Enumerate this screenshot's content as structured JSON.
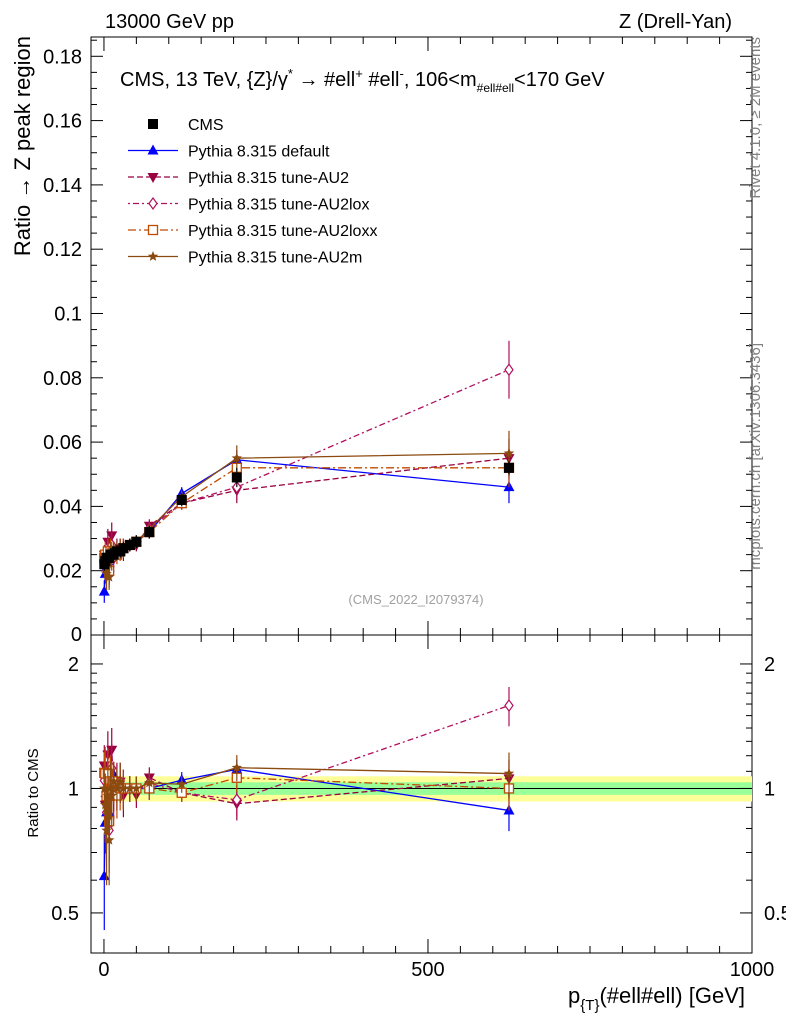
{
  "header": {
    "left": "13000 GeV pp",
    "right": "Z (Drell-Yan)"
  },
  "side_labels": {
    "rivet": "Rivet 4.1.0, ≥ 2M events",
    "mcplots": "mcplots.cern.ch [arXiv:1306.3436]"
  },
  "colors": {
    "cms": "#000000",
    "default": "#0000ff",
    "au2": "#990040",
    "au2lox": "#b01060",
    "au2loxx": "#c04a00",
    "au2m": "#8b4a10",
    "band_inner": "#99ff99",
    "band_outer": "#ffff99"
  },
  "chart_data": {
    "type": "scatter",
    "title": "CMS, 13 TeV, {Z}/γ* → #ell⁺ #ell⁻, 106<m_{#ell#ell}<170 GeV",
    "watermark": "(CMS_2022_I2079374)",
    "xlabel": "p_{T}(#ell#ell) [GeV]",
    "ylabel": "Ratio → Z peak region",
    "ratio_ylabel": "Ratio to CMS",
    "xlim": [
      -20,
      1000
    ],
    "ylim": [
      0,
      0.186
    ],
    "ratio_ylim": [
      0.4,
      2.35
    ],
    "xticks": [
      0,
      500,
      1000
    ],
    "xtick_labels": [
      "0",
      "500",
      "1000"
    ],
    "yticks": [
      0.02,
      0.04,
      0.06,
      0.08,
      0.1,
      0.12,
      0.14,
      0.16,
      0.18
    ],
    "ytick_labels": [
      "0.02",
      "0.04",
      "0.06",
      "0.08",
      "0.1",
      "0.12",
      "0.14",
      "0.16",
      "0.18"
    ],
    "ytick_zero_label": "0",
    "ratio_yticks": [
      0.5,
      1,
      2
    ],
    "ratio_ytick_labels": [
      "0.5",
      "1",
      "2"
    ],
    "x": [
      0.5,
      2,
      4,
      6,
      8,
      10,
      12,
      15,
      20,
      25,
      30,
      40,
      50,
      70,
      120,
      205,
      625
    ],
    "series": [
      {
        "name": "CMS",
        "key": "cms",
        "marker": "square",
        "dash": "",
        "values": [
          0.022,
          0.023,
          0.024,
          0.024,
          0.024,
          0.025,
          0.025,
          0.025,
          0.026,
          0.026,
          0.027,
          0.028,
          0.029,
          0.032,
          0.042,
          0.049,
          0.052
        ],
        "err": [
          0.002,
          0.002,
          0.002,
          0.002,
          0.002,
          0.002,
          0.002,
          0.002,
          0.002,
          0.002,
          0.002,
          0.002,
          0.002,
          0.002,
          0.002,
          0.003,
          0.002
        ]
      },
      {
        "name": "Pythia 8.315 default",
        "key": "default",
        "marker": "triangle-up",
        "dash": "",
        "values": [
          0.0135,
          0.019,
          0.021,
          0.023,
          0.021,
          0.025,
          0.026,
          0.027,
          0.026,
          0.026,
          0.027,
          0.028,
          0.029,
          0.032,
          0.044,
          0.0545,
          0.046
        ],
        "err": [
          0.0035,
          0.003,
          0.003,
          0.003,
          0.003,
          0.003,
          0.003,
          0.002,
          0.002,
          0.002,
          0.002,
          0.002,
          0.002,
          0.002,
          0.002,
          0.003,
          0.005
        ]
      },
      {
        "name": "Pythia 8.315 tune-AU2",
        "key": "au2",
        "marker": "triangle-down",
        "dash": "6,3",
        "values": [
          0.025,
          0.021,
          0.022,
          0.029,
          0.02,
          0.026,
          0.031,
          0.025,
          0.027,
          0.027,
          0.026,
          0.028,
          0.028,
          0.034,
          0.041,
          0.045,
          0.055
        ],
        "err": [
          0.003,
          0.004,
          0.004,
          0.004,
          0.004,
          0.004,
          0.004,
          0.003,
          0.003,
          0.003,
          0.003,
          0.002,
          0.002,
          0.002,
          0.002,
          0.004,
          0.006
        ]
      },
      {
        "name": "Pythia 8.315 tune-AU2lox",
        "key": "au2lox",
        "marker": "diamond",
        "dash": "2,3,6,3",
        "values": [
          0.023,
          0.022,
          0.021,
          0.025,
          0.019,
          0.026,
          0.028,
          0.024,
          0.026,
          0.027,
          0.027,
          0.028,
          0.029,
          0.033,
          0.041,
          0.046,
          0.0825
        ],
        "err": [
          0.003,
          0.004,
          0.004,
          0.004,
          0.004,
          0.004,
          0.004,
          0.003,
          0.003,
          0.003,
          0.003,
          0.002,
          0.002,
          0.002,
          0.002,
          0.004,
          0.009
        ]
      },
      {
        "name": "Pythia 8.315 tune-AU2loxx",
        "key": "au2loxx",
        "marker": "open-square",
        "dash": "8,3,2,3",
        "values": [
          0.024,
          0.025,
          0.023,
          0.026,
          0.02,
          0.026,
          0.025,
          0.026,
          0.025,
          0.026,
          0.027,
          0.028,
          0.029,
          0.032,
          0.041,
          0.052,
          0.052
        ],
        "err": [
          0.003,
          0.004,
          0.004,
          0.004,
          0.004,
          0.004,
          0.004,
          0.003,
          0.003,
          0.003,
          0.003,
          0.002,
          0.002,
          0.002,
          0.002,
          0.004,
          0.006
        ]
      },
      {
        "name": "Pythia 8.315 tune-AU2m",
        "key": "au2m",
        "marker": "star",
        "dash": "",
        "values": [
          0.022,
          0.021,
          0.019,
          0.023,
          0.018,
          0.025,
          0.024,
          0.026,
          0.026,
          0.027,
          0.027,
          0.028,
          0.029,
          0.033,
          0.043,
          0.055,
          0.0565
        ],
        "err": [
          0.003,
          0.004,
          0.005,
          0.004,
          0.004,
          0.004,
          0.004,
          0.003,
          0.003,
          0.003,
          0.003,
          0.002,
          0.002,
          0.002,
          0.002,
          0.004,
          0.007
        ]
      }
    ],
    "band": {
      "x": [
        0,
        1000
      ],
      "inner": [
        0.965,
        1.035
      ],
      "outer": [
        0.93,
        1.07
      ]
    }
  }
}
